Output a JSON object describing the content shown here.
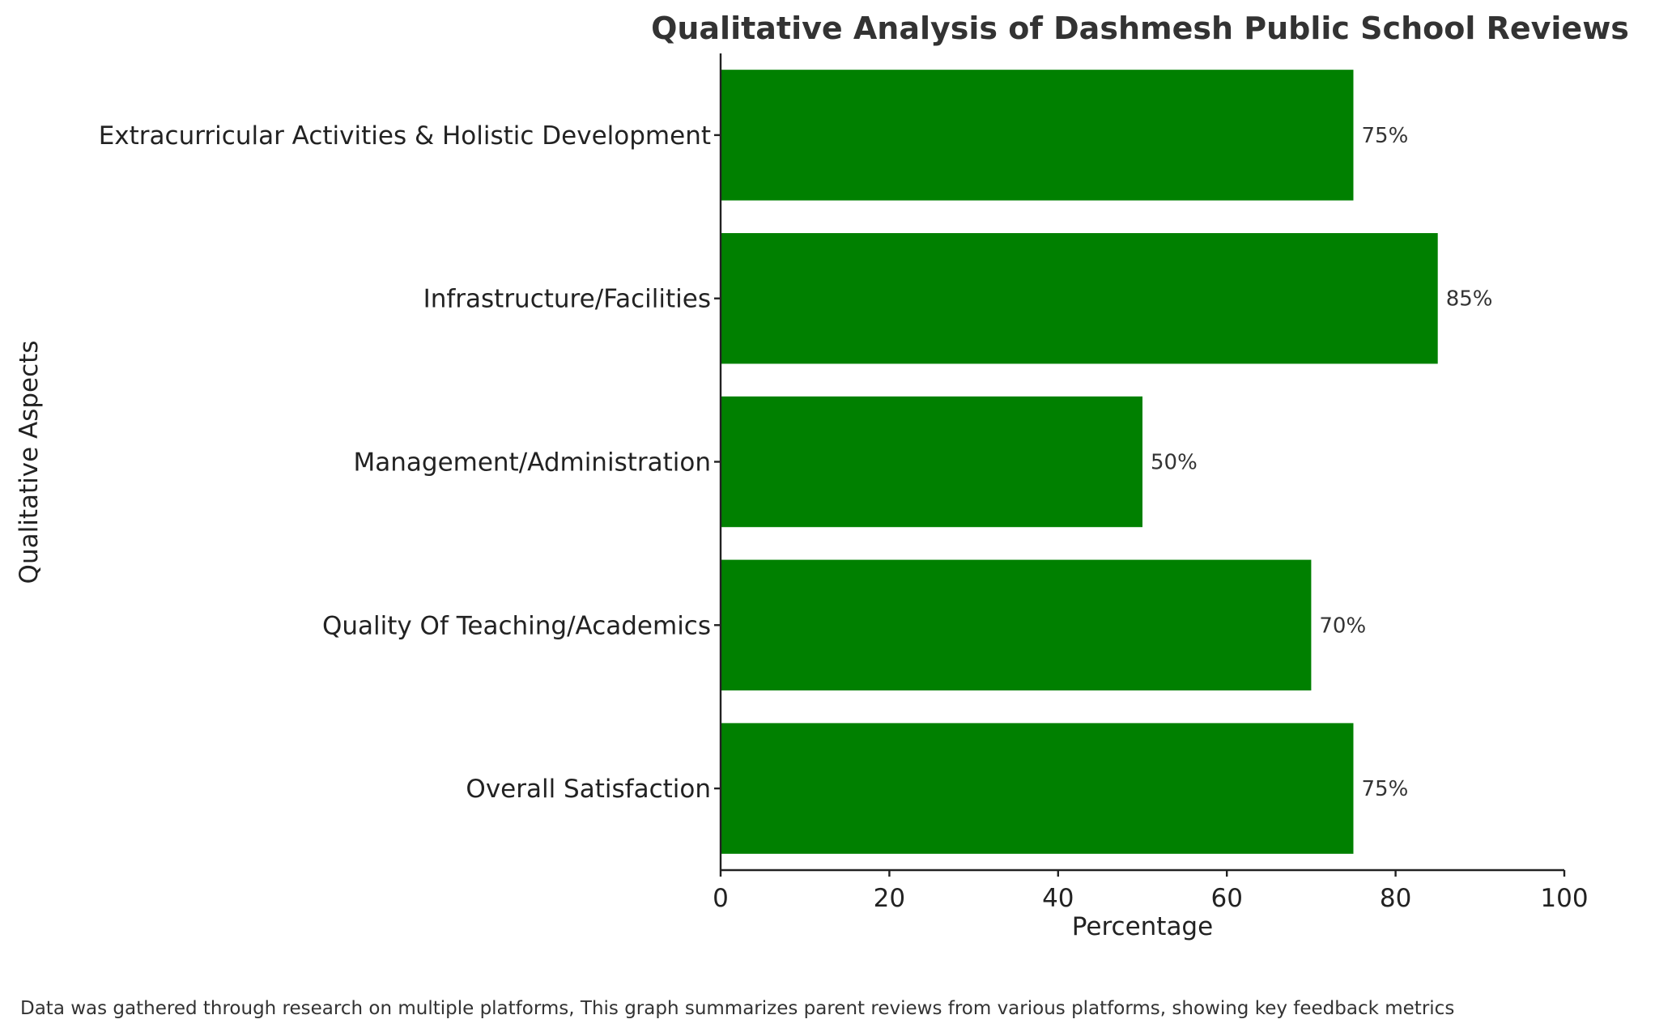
{
  "chart_data": {
    "type": "bar",
    "orientation": "horizontal",
    "title": "Qualitative Analysis of Dashmesh Public School Reviews",
    "xlabel": "Percentage",
    "ylabel": "Qualitative Aspects",
    "categories": [
      "Overall Satisfaction",
      "Quality Of Teaching/Academics",
      "Management/Administration",
      "Infrastructure/Facilities",
      "Extracurricular Activities & Holistic Development"
    ],
    "values": [
      75,
      70,
      50,
      85,
      75
    ],
    "value_labels": [
      "75%",
      "70%",
      "50%",
      "85%",
      "75%"
    ],
    "xlim": [
      0,
      100
    ],
    "xticks": [
      0,
      20,
      40,
      60,
      80,
      100
    ],
    "xtick_labels": [
      "0",
      "20",
      "40",
      "60",
      "80",
      "100"
    ],
    "grid": false,
    "legend": "none",
    "bar_color": "#008000",
    "note": "Data was gathered through research on multiple platforms, This graph summarizes parent reviews from various platforms, showing key feedback metrics"
  }
}
